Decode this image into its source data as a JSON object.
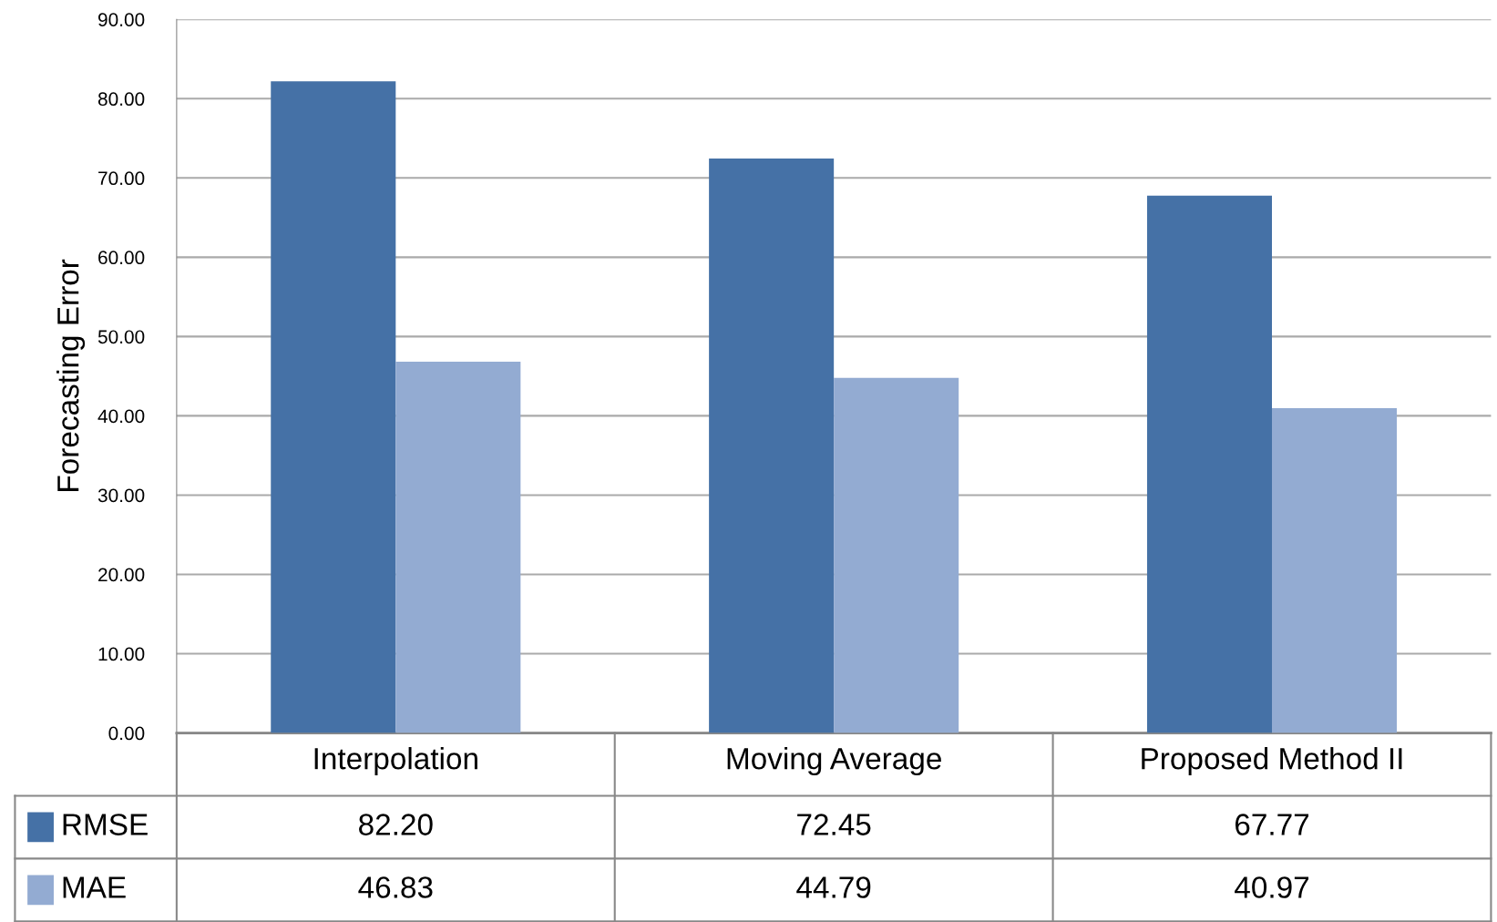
{
  "chart_data": {
    "type": "bar",
    "ylabel": "Forecasting Error",
    "categories": [
      "Interpolation",
      "Moving Average",
      "Proposed Method II"
    ],
    "series": [
      {
        "name": "RMSE",
        "color": "#4571a6",
        "values": [
          82.2,
          72.45,
          67.77
        ],
        "value_labels": [
          "82.20",
          "72.45",
          "67.77"
        ]
      },
      {
        "name": "MAE",
        "color": "#93abd2",
        "values": [
          46.83,
          44.79,
          40.97
        ],
        "value_labels": [
          "46.83",
          "44.79",
          "40.97"
        ]
      }
    ],
    "ylim": [
      0,
      90
    ],
    "yticks": [
      {
        "value": 0,
        "label": "0.00"
      },
      {
        "value": 10,
        "label": "10.00"
      },
      {
        "value": 20,
        "label": "20.00"
      },
      {
        "value": 30,
        "label": "30.00"
      },
      {
        "value": 40,
        "label": "40.00"
      },
      {
        "value": 50,
        "label": "50.00"
      },
      {
        "value": 60,
        "label": "60.00"
      },
      {
        "value": 70,
        "label": "70.00"
      },
      {
        "value": 80,
        "label": "80.00"
      },
      {
        "value": 90,
        "label": "90.00"
      }
    ],
    "grid": "y",
    "legend": "bottom left"
  }
}
